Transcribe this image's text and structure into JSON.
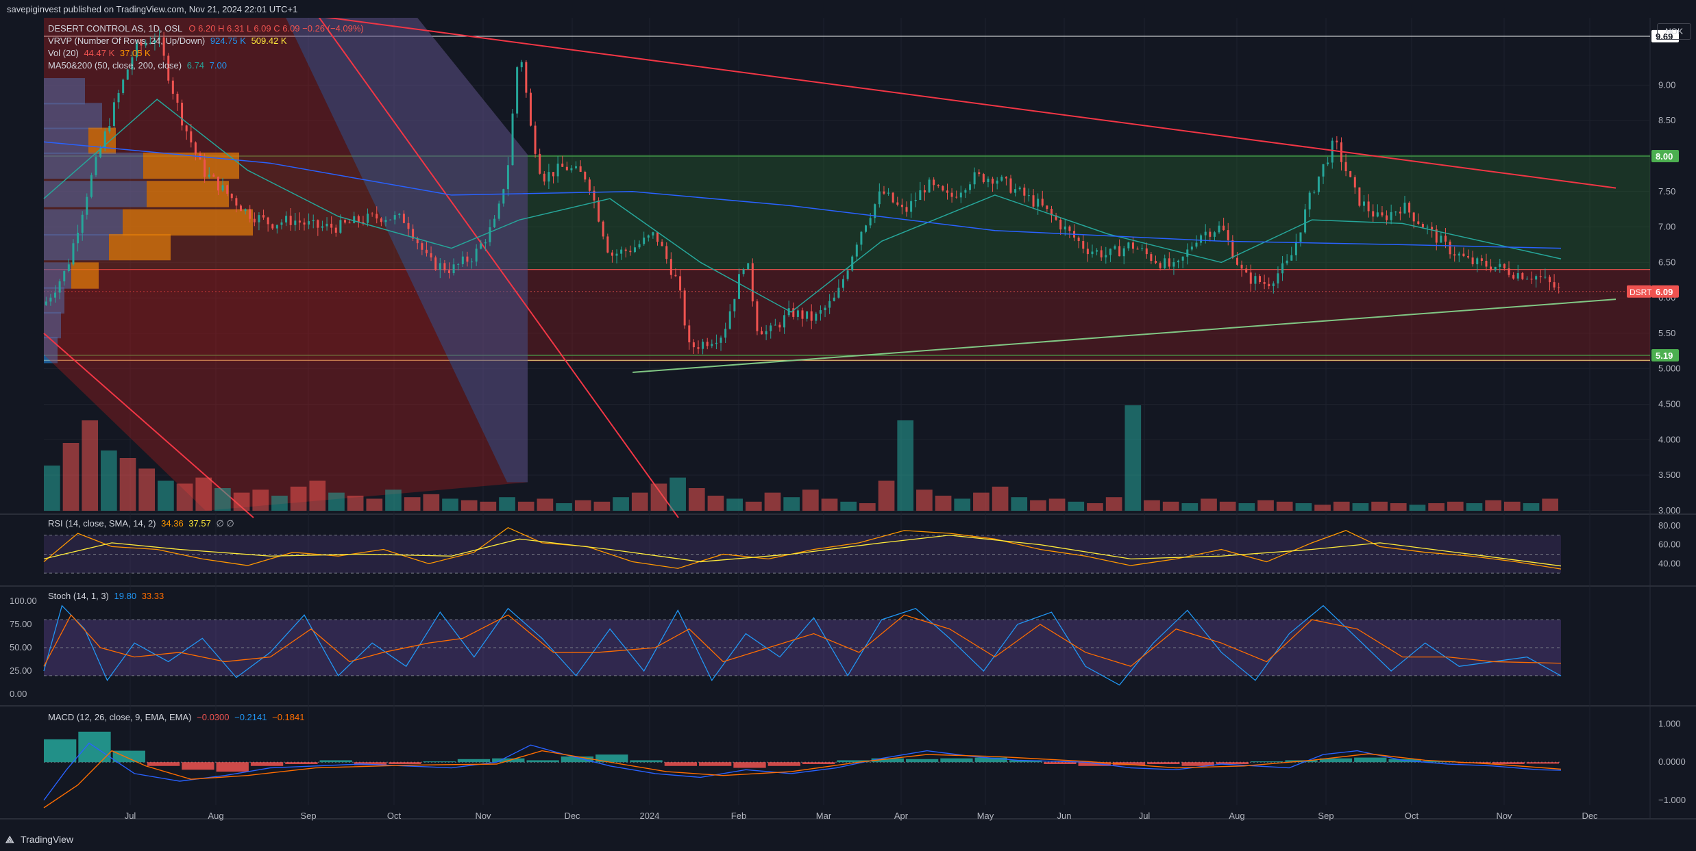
{
  "header": {
    "published": "savepiginvest published on TradingView.com, Nov 21, 2024 22:01 UTC+1"
  },
  "footer": {
    "brand": "TradingView",
    "logo": "tradingview-logo"
  },
  "currency": "NOK",
  "colors": {
    "bg": "#131722",
    "up": "#26a69a",
    "down": "#ef5350",
    "grid": "#2a2e39"
  },
  "chart_data": {
    "type": "candlestick",
    "symbol": "DSRT",
    "x_ticks": [
      "Jul",
      "Aug",
      "Sep",
      "Oct",
      "Nov",
      "Dec",
      "2024",
      "Feb",
      "Mar",
      "Apr",
      "May",
      "Jun",
      "Jul",
      "Aug",
      "Sep",
      "Oct",
      "Nov",
      "Dec"
    ],
    "price_axis": {
      "ticks": [
        "9.00",
        "8.50",
        "8.00",
        "7.50",
        "7.00",
        "6.50",
        "6.00",
        "5.50",
        "5.000",
        "4.500",
        "4.000",
        "3.500",
        "3.000"
      ],
      "ylim": [
        3.0,
        9.7
      ]
    },
    "price_labels": [
      {
        "text": "9.69",
        "value": 9.69,
        "color": "#ffffff"
      },
      {
        "text": "8.00",
        "value": 8.0,
        "color": "#4caf50"
      },
      {
        "text": "6.09",
        "value": 6.09,
        "color": "#ef5350"
      },
      {
        "text": "5.19",
        "value": 5.19,
        "color": "#4caf50"
      }
    ],
    "last_symbol_label": "DSRT",
    "legend": {
      "title": "DESERT CONTROL AS, 1D, OSL",
      "ohlc": "O 6.20  H 6.31  L 6.09  C 6.09  −0.26 (−4.09%)",
      "vrvp": "VRVP (Number Of Rows, 24, Up/Down)",
      "vrvp_vals": [
        "924.75 K",
        "509.42 K"
      ],
      "vol": "Vol (20)",
      "vol_vals": [
        "44.47 K",
        "37.05 K"
      ],
      "ma": "MA50&200 (50, close, 200, close)",
      "ma_vals": [
        "6.74",
        "7.00"
      ]
    },
    "close_path": [
      [
        0,
        5.9
      ],
      [
        10,
        6.4
      ],
      [
        20,
        7.6
      ],
      [
        30,
        8.6
      ],
      [
        40,
        9.5
      ],
      [
        50,
        9.7
      ],
      [
        60,
        8.6
      ],
      [
        70,
        7.8
      ],
      [
        80,
        7.5
      ],
      [
        90,
        7.2
      ],
      [
        100,
        7.05
      ],
      [
        110,
        7.1
      ],
      [
        120,
        7.0
      ],
      [
        130,
        7.0
      ],
      [
        140,
        7.1
      ],
      [
        150,
        7.15
      ],
      [
        160,
        7.1
      ],
      [
        170,
        6.5
      ],
      [
        180,
        6.4
      ],
      [
        190,
        6.6
      ],
      [
        200,
        7.1
      ],
      [
        205,
        7.9
      ],
      [
        210,
        9.6
      ],
      [
        215,
        8.4
      ],
      [
        220,
        7.7
      ],
      [
        230,
        7.85
      ],
      [
        240,
        7.7
      ],
      [
        250,
        6.6
      ],
      [
        260,
        6.7
      ],
      [
        270,
        6.9
      ],
      [
        280,
        6.2
      ],
      [
        285,
        5.3
      ],
      [
        290,
        5.35
      ],
      [
        300,
        5.5
      ],
      [
        310,
        6.6
      ],
      [
        315,
        5.6
      ],
      [
        320,
        5.5
      ],
      [
        330,
        5.8
      ],
      [
        340,
        5.7
      ],
      [
        350,
        6.0
      ],
      [
        360,
        6.9
      ],
      [
        370,
        7.5
      ],
      [
        380,
        7.2
      ],
      [
        390,
        7.6
      ],
      [
        400,
        7.4
      ],
      [
        410,
        7.7
      ],
      [
        420,
        7.7
      ],
      [
        430,
        7.5
      ],
      [
        440,
        7.3
      ],
      [
        450,
        7.0
      ],
      [
        460,
        6.7
      ],
      [
        470,
        6.6
      ],
      [
        480,
        6.75
      ],
      [
        490,
        6.55
      ],
      [
        500,
        6.4
      ],
      [
        510,
        6.9
      ],
      [
        520,
        7.0
      ],
      [
        530,
        6.3
      ],
      [
        540,
        6.2
      ],
      [
        550,
        6.5
      ],
      [
        560,
        7.5
      ],
      [
        570,
        8.2
      ],
      [
        575,
        7.8
      ],
      [
        580,
        7.4
      ],
      [
        590,
        7.1
      ],
      [
        600,
        7.3
      ],
      [
        610,
        7.0
      ],
      [
        620,
        6.7
      ],
      [
        630,
        6.5
      ],
      [
        640,
        6.45
      ],
      [
        650,
        6.35
      ],
      [
        660,
        6.3
      ],
      [
        670,
        6.09
      ]
    ],
    "ma50_path": [
      [
        0,
        7.4
      ],
      [
        50,
        8.8
      ],
      [
        90,
        7.8
      ],
      [
        130,
        7.15
      ],
      [
        180,
        6.7
      ],
      [
        210,
        7.1
      ],
      [
        250,
        7.4
      ],
      [
        290,
        6.5
      ],
      [
        330,
        5.8
      ],
      [
        370,
        6.8
      ],
      [
        420,
        7.45
      ],
      [
        470,
        6.9
      ],
      [
        520,
        6.5
      ],
      [
        560,
        7.1
      ],
      [
        600,
        7.05
      ],
      [
        670,
        6.55
      ]
    ],
    "ma200_path": [
      [
        0,
        8.2
      ],
      [
        100,
        7.9
      ],
      [
        180,
        7.45
      ],
      [
        260,
        7.5
      ],
      [
        330,
        7.3
      ],
      [
        420,
        6.95
      ],
      [
        520,
        6.8
      ],
      [
        600,
        6.75
      ],
      [
        670,
        6.7
      ]
    ],
    "volume_bars": [
      30,
      45,
      60,
      40,
      35,
      28,
      20,
      18,
      22,
      15,
      12,
      14,
      10,
      16,
      20,
      12,
      10,
      8,
      14,
      9,
      11,
      8,
      7,
      6,
      9,
      6,
      8,
      5,
      7,
      6,
      9,
      12,
      18,
      22,
      15,
      10,
      8,
      6,
      12,
      9,
      14,
      8,
      6,
      5,
      20,
      60,
      14,
      10,
      8,
      12,
      16,
      9,
      7,
      8,
      6,
      5,
      9,
      70,
      7,
      6,
      5,
      8,
      6,
      5,
      7,
      6,
      5,
      4,
      6,
      5,
      6,
      5,
      4,
      5,
      6,
      5,
      7,
      6,
      5,
      8
    ],
    "trendlines": [
      {
        "from": [
          20,
          10.4
        ],
        "to": [
          670,
          7.55
        ],
        "color": "#f23645"
      },
      {
        "from": [
          260,
          4.95
        ],
        "to": [
          670,
          5.98
        ],
        "color": "#81c784"
      }
    ],
    "zones": [
      {
        "from": 6.4,
        "to": 8.02,
        "color": "#2e7d32"
      },
      {
        "from": 5.1,
        "to": 6.4,
        "color": "#b71c1c"
      }
    ],
    "rsi": {
      "label": "RSI (14, close, SMA, 14, 2)",
      "values": [
        "34.36",
        "37.57"
      ],
      "ticks": [
        "80.00",
        "60.00",
        "40.00"
      ],
      "ylim": [
        20,
        85
      ],
      "line": [
        [
          0,
          42
        ],
        [
          15,
          72
        ],
        [
          30,
          58
        ],
        [
          50,
          55
        ],
        [
          70,
          45
        ],
        [
          90,
          38
        ],
        [
          110,
          52
        ],
        [
          130,
          48
        ],
        [
          150,
          55
        ],
        [
          170,
          40
        ],
        [
          190,
          52
        ],
        [
          205,
          78
        ],
        [
          220,
          62
        ],
        [
          240,
          58
        ],
        [
          260,
          42
        ],
        [
          280,
          35
        ],
        [
          300,
          50
        ],
        [
          320,
          45
        ],
        [
          340,
          55
        ],
        [
          360,
          62
        ],
        [
          380,
          75
        ],
        [
          400,
          72
        ],
        [
          420,
          66
        ],
        [
          440,
          55
        ],
        [
          460,
          48
        ],
        [
          480,
          38
        ],
        [
          500,
          45
        ],
        [
          520,
          55
        ],
        [
          540,
          42
        ],
        [
          560,
          62
        ],
        [
          575,
          75
        ],
        [
          590,
          58
        ],
        [
          610,
          52
        ],
        [
          630,
          48
        ],
        [
          650,
          42
        ],
        [
          670,
          34.36
        ]
      ],
      "signal": [
        [
          0,
          45
        ],
        [
          30,
          62
        ],
        [
          60,
          55
        ],
        [
          100,
          48
        ],
        [
          140,
          50
        ],
        [
          180,
          48
        ],
        [
          210,
          66
        ],
        [
          250,
          55
        ],
        [
          290,
          42
        ],
        [
          330,
          50
        ],
        [
          370,
          62
        ],
        [
          400,
          70
        ],
        [
          440,
          60
        ],
        [
          480,
          45
        ],
        [
          520,
          48
        ],
        [
          560,
          55
        ],
        [
          590,
          62
        ],
        [
          630,
          50
        ],
        [
          670,
          37.57
        ]
      ]
    },
    "stoch": {
      "label": "Stoch (14, 1, 3)",
      "values": [
        "19.80",
        "33.33"
      ],
      "ticks": [
        "100.00",
        "75.00",
        "50.00",
        "25.00",
        "0.00"
      ],
      "k": [
        [
          0,
          25
        ],
        [
          8,
          95
        ],
        [
          18,
          70
        ],
        [
          28,
          15
        ],
        [
          40,
          55
        ],
        [
          55,
          35
        ],
        [
          70,
          60
        ],
        [
          85,
          18
        ],
        [
          100,
          45
        ],
        [
          115,
          85
        ],
        [
          130,
          20
        ],
        [
          145,
          55
        ],
        [
          160,
          30
        ],
        [
          175,
          88
        ],
        [
          190,
          40
        ],
        [
          205,
          92
        ],
        [
          220,
          60
        ],
        [
          235,
          20
        ],
        [
          250,
          70
        ],
        [
          265,
          25
        ],
        [
          280,
          90
        ],
        [
          295,
          15
        ],
        [
          310,
          65
        ],
        [
          325,
          40
        ],
        [
          340,
          82
        ],
        [
          355,
          20
        ],
        [
          370,
          80
        ],
        [
          385,
          92
        ],
        [
          400,
          60
        ],
        [
          415,
          25
        ],
        [
          430,
          75
        ],
        [
          445,
          88
        ],
        [
          460,
          30
        ],
        [
          475,
          10
        ],
        [
          490,
          55
        ],
        [
          505,
          90
        ],
        [
          520,
          45
        ],
        [
          535,
          15
        ],
        [
          550,
          65
        ],
        [
          565,
          95
        ],
        [
          580,
          60
        ],
        [
          595,
          25
        ],
        [
          610,
          55
        ],
        [
          625,
          30
        ],
        [
          640,
          35
        ],
        [
          655,
          40
        ],
        [
          670,
          19.8
        ]
      ],
      "d": [
        [
          0,
          30
        ],
        [
          12,
          85
        ],
        [
          25,
          50
        ],
        [
          40,
          40
        ],
        [
          60,
          45
        ],
        [
          80,
          35
        ],
        [
          100,
          40
        ],
        [
          118,
          70
        ],
        [
          135,
          35
        ],
        [
          150,
          45
        ],
        [
          170,
          55
        ],
        [
          185,
          60
        ],
        [
          205,
          85
        ],
        [
          225,
          45
        ],
        [
          245,
          45
        ],
        [
          270,
          50
        ],
        [
          285,
          70
        ],
        [
          300,
          35
        ],
        [
          320,
          50
        ],
        [
          340,
          65
        ],
        [
          360,
          45
        ],
        [
          380,
          85
        ],
        [
          400,
          70
        ],
        [
          420,
          40
        ],
        [
          440,
          75
        ],
        [
          460,
          45
        ],
        [
          480,
          30
        ],
        [
          500,
          70
        ],
        [
          520,
          55
        ],
        [
          540,
          35
        ],
        [
          560,
          80
        ],
        [
          580,
          70
        ],
        [
          600,
          40
        ],
        [
          620,
          40
        ],
        [
          640,
          35
        ],
        [
          670,
          33.33
        ]
      ]
    },
    "macd": {
      "label": "MACD (12, 26, close, 9, EMA, EMA)",
      "values": [
        "−0.0300",
        "−0.2141",
        "−0.1841"
      ],
      "ticks": [
        "1.000",
        "0.0000",
        "−1.000"
      ],
      "ylim": [
        -1.4,
        1.3
      ],
      "macd_line": [
        [
          0,
          -1.0
        ],
        [
          10,
          -0.2
        ],
        [
          20,
          0.5
        ],
        [
          30,
          0.1
        ],
        [
          40,
          -0.3
        ],
        [
          60,
          -0.5
        ],
        [
          80,
          -0.35
        ],
        [
          100,
          -0.15
        ],
        [
          120,
          -0.1
        ],
        [
          140,
          -0.05
        ],
        [
          160,
          -0.1
        ],
        [
          180,
          -0.15
        ],
        [
          200,
          0.0
        ],
        [
          215,
          0.45
        ],
        [
          230,
          0.2
        ],
        [
          250,
          -0.1
        ],
        [
          270,
          -0.3
        ],
        [
          290,
          -0.4
        ],
        [
          310,
          -0.2
        ],
        [
          330,
          -0.3
        ],
        [
          350,
          -0.15
        ],
        [
          370,
          0.1
        ],
        [
          390,
          0.3
        ],
        [
          410,
          0.15
        ],
        [
          430,
          0.05
        ],
        [
          460,
          0.0
        ],
        [
          480,
          -0.15
        ],
        [
          500,
          -0.2
        ],
        [
          520,
          -0.05
        ],
        [
          550,
          -0.15
        ],
        [
          565,
          0.2
        ],
        [
          580,
          0.3
        ],
        [
          600,
          0.05
        ],
        [
          620,
          -0.05
        ],
        [
          640,
          -0.1
        ],
        [
          660,
          -0.2
        ],
        [
          670,
          -0.214
        ]
      ],
      "signal_line": [
        [
          0,
          -1.2
        ],
        [
          15,
          -0.6
        ],
        [
          30,
          0.3
        ],
        [
          45,
          -0.1
        ],
        [
          65,
          -0.45
        ],
        [
          90,
          -0.35
        ],
        [
          120,
          -0.15
        ],
        [
          160,
          -0.08
        ],
        [
          200,
          -0.05
        ],
        [
          220,
          0.3
        ],
        [
          245,
          0.05
        ],
        [
          275,
          -0.25
        ],
        [
          300,
          -0.35
        ],
        [
          330,
          -0.25
        ],
        [
          360,
          0.0
        ],
        [
          390,
          0.2
        ],
        [
          420,
          0.15
        ],
        [
          460,
          0.02
        ],
        [
          500,
          -0.15
        ],
        [
          530,
          -0.1
        ],
        [
          560,
          0.05
        ],
        [
          585,
          0.22
        ],
        [
          610,
          0.05
        ],
        [
          640,
          -0.05
        ],
        [
          670,
          -0.184
        ]
      ],
      "hist": [
        0.6,
        0.8,
        0.3,
        -0.1,
        -0.2,
        -0.25,
        -0.1,
        -0.05,
        0.05,
        -0.08,
        -0.05,
        0.02,
        0.08,
        0.1,
        0.05,
        0.15,
        0.2,
        0.05,
        -0.1,
        -0.1,
        -0.15,
        -0.1,
        -0.05,
        0.05,
        0.1,
        0.08,
        0.1,
        0.12,
        0.05,
        -0.05,
        -0.1,
        -0.08,
        -0.05,
        -0.1,
        -0.05,
        0.02,
        0.05,
        0.1,
        0.12,
        0.08,
        0.03,
        -0.03,
        -0.05,
        -0.04
      ]
    }
  }
}
